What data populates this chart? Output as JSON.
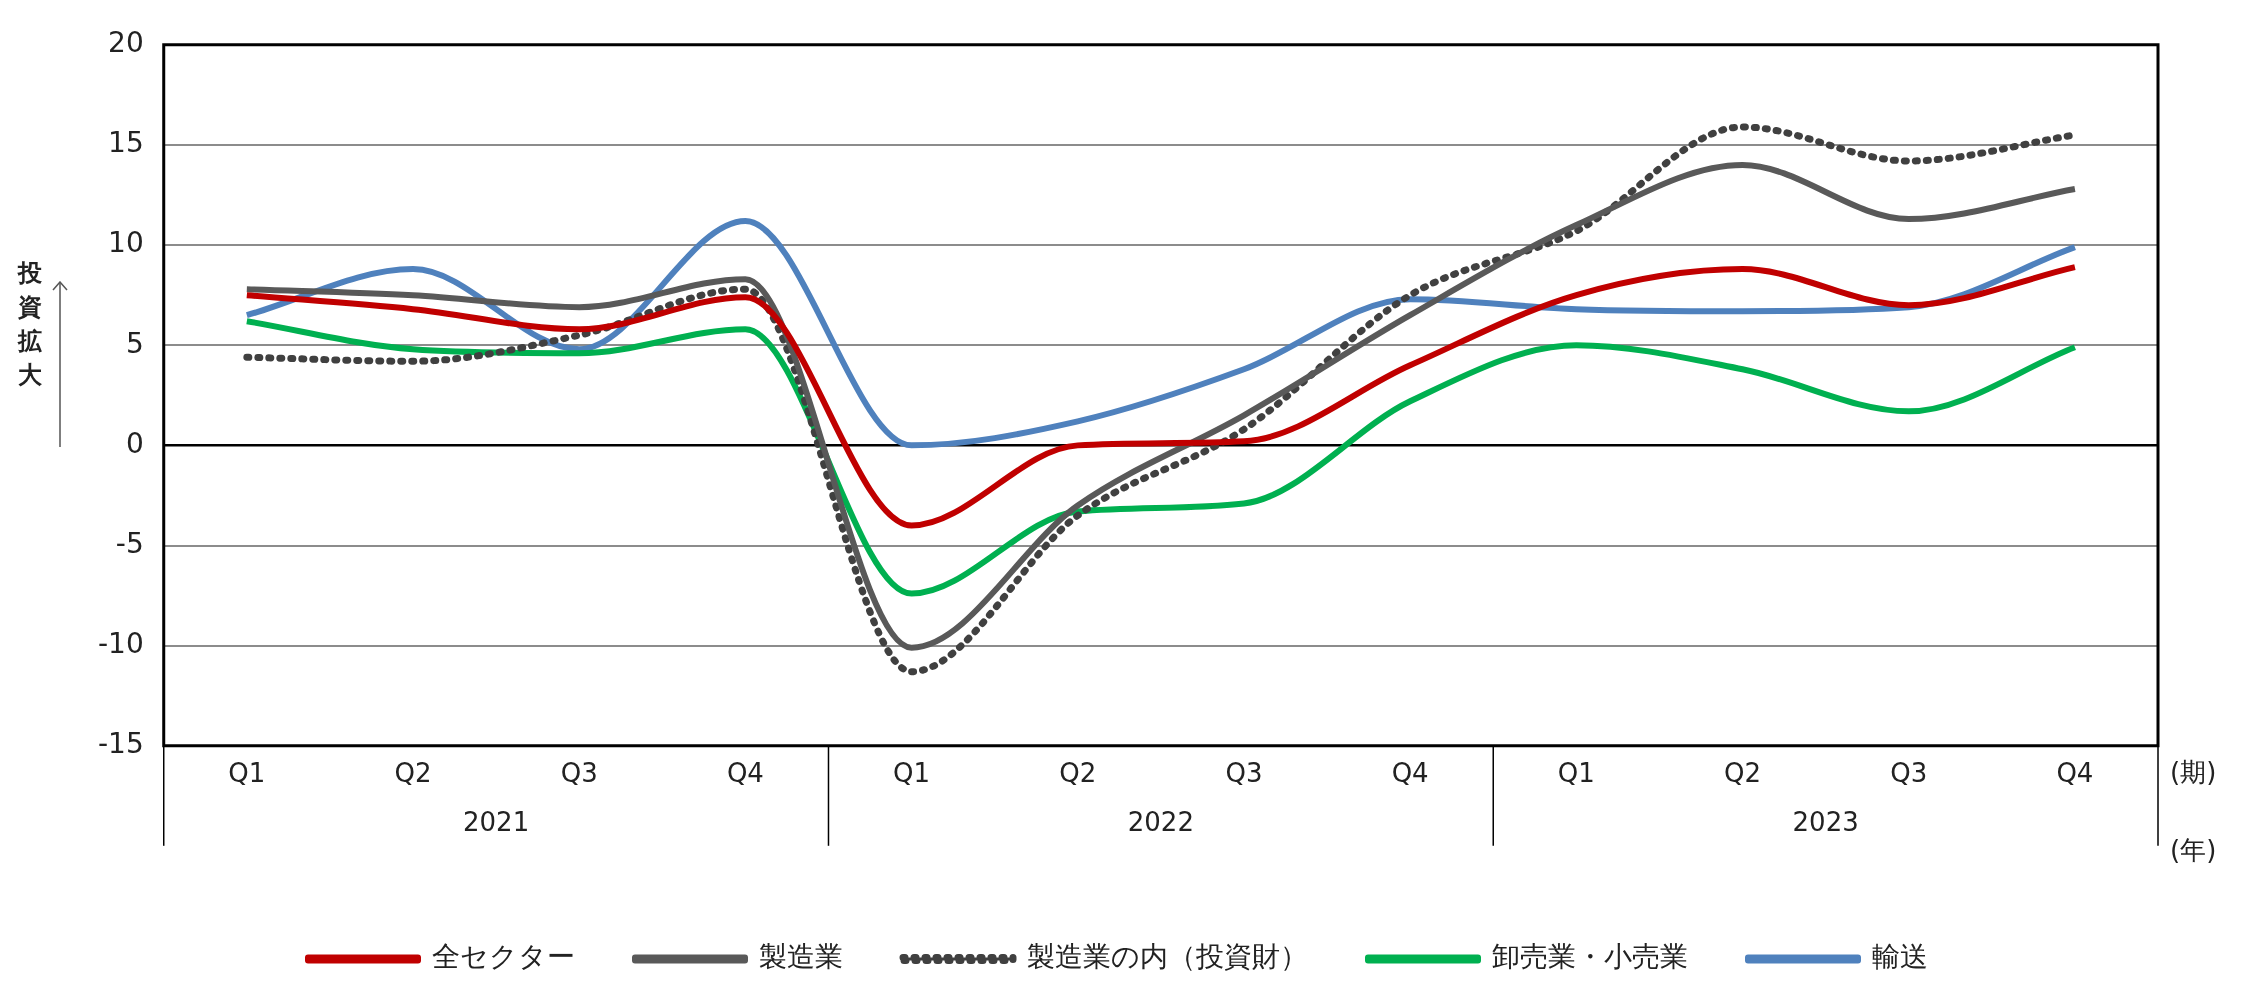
{
  "chart_data": {
    "type": "line",
    "ylabel": "投資拡大",
    "categories": [
      "Q1",
      "Q2",
      "Q3",
      "Q4",
      "Q1",
      "Q2",
      "Q3",
      "Q4",
      "Q1",
      "Q2",
      "Q3",
      "Q4"
    ],
    "series": [
      {
        "name": "全セクター",
        "color": "#c00000",
        "values": [
          7.5,
          6.8,
          5.8,
          7.4,
          -4.0,
          0.0,
          0.2,
          4.0,
          7.5,
          8.8,
          7.0,
          8.9
        ]
      },
      {
        "name": "製造業",
        "color": "#595959",
        "values": [
          7.8,
          7.5,
          6.9,
          8.3,
          -10.1,
          -3.0,
          1.5,
          6.5,
          11.0,
          14.0,
          11.3,
          12.8
        ]
      },
      {
        "name": "製造業の内（投資財）",
        "color": "#404040",
        "line_style": "dotted",
        "values": [
          4.4,
          4.2,
          5.5,
          7.8,
          -11.3,
          -3.5,
          0.8,
          7.5,
          10.7,
          15.9,
          14.2,
          15.5
        ]
      },
      {
        "name": "卸売業・小売業",
        "color": "#00b050",
        "values": [
          6.2,
          4.8,
          4.6,
          5.8,
          -7.4,
          -3.3,
          -2.9,
          2.2,
          5.0,
          3.8,
          1.7,
          4.9
        ]
      },
      {
        "name": "輸送",
        "color": "#4f81bd",
        "values": [
          6.5,
          8.8,
          4.8,
          11.2,
          0.0,
          1.2,
          3.8,
          7.3,
          6.8,
          6.7,
          6.9,
          9.9
        ]
      }
    ],
    "ylim": [
      -15,
      20
    ],
    "yticks": [
      -15,
      -10,
      -5,
      0,
      5,
      10,
      15,
      20
    ],
    "grid": "y",
    "legend": "bottom",
    "marker": "none",
    "line_style": "solid",
    "annotations": [
      "2021",
      "2022",
      "2023",
      "(期)",
      "(年)"
    ]
  }
}
